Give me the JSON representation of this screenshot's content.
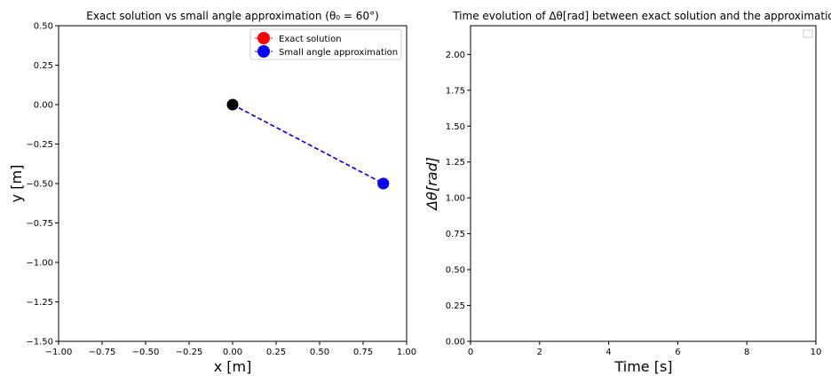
{
  "chart_data": [
    {
      "type": "scatter",
      "title": "Exact solution vs small angle approximation (θ₀ = 60°)",
      "xlabel": "x [m]",
      "ylabel": "y [m]",
      "xlim": [
        -1.0,
        1.0
      ],
      "ylim": [
        -1.5,
        0.5
      ],
      "xticks": [
        "−1.00",
        "−0.75",
        "−0.50",
        "−0.25",
        "0.00",
        "0.25",
        "0.50",
        "0.75",
        "1.00"
      ],
      "yticks": [
        "−1.50",
        "−1.25",
        "−1.00",
        "−0.75",
        "−0.50",
        "−0.25",
        "0.00",
        "0.25",
        "0.50"
      ],
      "pivot": {
        "x": 0.0,
        "y": 0.0,
        "color": "#000000"
      },
      "series": [
        {
          "name": "Exact solution",
          "color": "#ff0000",
          "line_style": "dashed",
          "points": [
            {
              "x": 0.0,
              "y": 0.0
            },
            {
              "x": 0.866,
              "y": -0.5
            }
          ]
        },
        {
          "name": "Small angle approximation",
          "color": "#0000ff",
          "line_style": "dashed",
          "points": [
            {
              "x": 0.0,
              "y": 0.0
            },
            {
              "x": 0.866,
              "y": -0.5
            }
          ]
        }
      ],
      "legend": "top-right",
      "grid": false
    },
    {
      "type": "line",
      "title": "Time evolution of Δθ[rad] between exact solution and the approximatio",
      "xlabel": "Time [s]",
      "ylabel": "Δθ[rad]",
      "xlim": [
        0,
        10
      ],
      "ylim": [
        0.0,
        2.2
      ],
      "xticks": [
        "0",
        "2",
        "4",
        "6",
        "8",
        "10"
      ],
      "yticks": [
        "0.00",
        "0.25",
        "0.50",
        "0.75",
        "1.00",
        "1.25",
        "1.50",
        "1.75",
        "2.00"
      ],
      "series": [],
      "legend": "top-right",
      "grid": false
    }
  ]
}
